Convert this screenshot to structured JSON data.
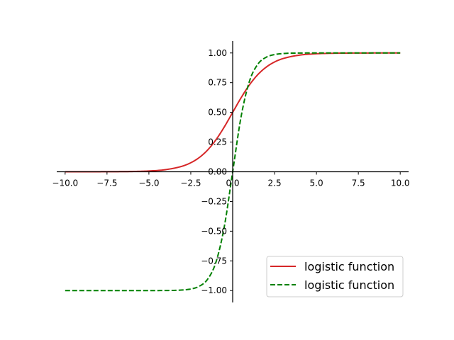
{
  "chart_data": {
    "type": "line",
    "title": "",
    "xlabel": "",
    "ylabel": "",
    "xlim": [
      -10.5,
      10.5
    ],
    "ylim": [
      -1.1,
      1.1
    ],
    "xticks": [
      -10.0,
      -7.5,
      -5.0,
      -2.5,
      0.0,
      2.5,
      5.0,
      7.5,
      10.0
    ],
    "yticks": [
      -1.0,
      -0.75,
      -0.5,
      -0.25,
      0.0,
      0.25,
      0.5,
      0.75,
      1.0
    ],
    "xtick_labels": [
      "−10.0",
      "−7.5",
      "−5.0",
      "−2.5",
      "0.0",
      "2.5",
      "5.0",
      "7.5",
      "10.0"
    ],
    "ytick_labels": [
      "−1.00",
      "−0.75",
      "−0.50",
      "−0.25",
      "0.00",
      "0.25",
      "0.50",
      "0.75",
      "1.00"
    ],
    "grid": false,
    "spines": "centered at origin",
    "legend_position": "lower-right",
    "series": [
      {
        "name": "logistic function",
        "color": "#d62728",
        "style": "solid",
        "x": [
          -10,
          -9,
          -8,
          -7,
          -6,
          -5,
          -4,
          -3,
          -2.5,
          -2,
          -1.5,
          -1,
          -0.5,
          0,
          0.5,
          1,
          1.5,
          2,
          2.5,
          3,
          4,
          5,
          6,
          7,
          8,
          9,
          10
        ],
        "y": [
          4.54e-05,
          0.0001234,
          0.0003354,
          0.000911,
          0.002473,
          0.006693,
          0.017986,
          0.047426,
          0.075858,
          0.119203,
          0.182426,
          0.268941,
          0.377541,
          0.5,
          0.622459,
          0.731059,
          0.817574,
          0.880797,
          0.924142,
          0.952574,
          0.982014,
          0.993307,
          0.997527,
          0.999089,
          0.999665,
          0.999877,
          0.999955
        ]
      },
      {
        "name": "logistic function",
        "color": "#008000",
        "style": "dashed",
        "x": [
          -10,
          -9,
          -8,
          -7,
          -6,
          -5,
          -4,
          -3,
          -2.5,
          -2,
          -1.5,
          -1,
          -0.5,
          0,
          0.5,
          1,
          1.5,
          2,
          2.5,
          3,
          4,
          5,
          6,
          7,
          8,
          9,
          10
        ],
        "y": [
          -1.0,
          -1.0,
          -1.0,
          -1.0,
          -0.999988,
          -0.999909,
          -0.999329,
          -0.995055,
          -0.986614,
          -0.964028,
          -0.905148,
          -0.761594,
          -0.462117,
          0.0,
          0.462117,
          0.761594,
          0.905148,
          0.964028,
          0.986614,
          0.995055,
          0.999329,
          0.999909,
          0.999988,
          1.0,
          1.0,
          1.0,
          1.0
        ]
      }
    ]
  }
}
